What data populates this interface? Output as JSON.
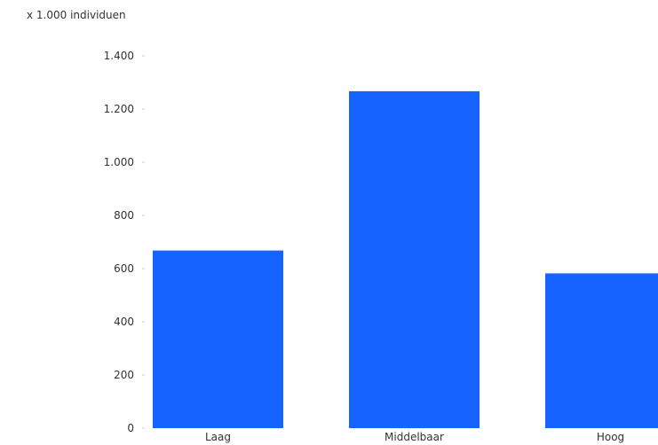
{
  "chart_data": {
    "type": "bar",
    "title": "",
    "unit_label": "x 1.000 individuen",
    "xlabel": "",
    "ylabel": "",
    "categories": [
      "Laag",
      "Middelbaar",
      "Hoog"
    ],
    "values": [
      668,
      1267,
      582
    ],
    "ylim": [
      0,
      1400
    ],
    "yticks": [
      0,
      200,
      400,
      600,
      800,
      1000,
      1200,
      1400
    ],
    "ytick_labels": [
      "0",
      "200",
      "400",
      "600",
      "800",
      "1.000",
      "1.200",
      "1.400"
    ],
    "grid": false,
    "legend": "none",
    "bar_color": "#1763ff"
  }
}
